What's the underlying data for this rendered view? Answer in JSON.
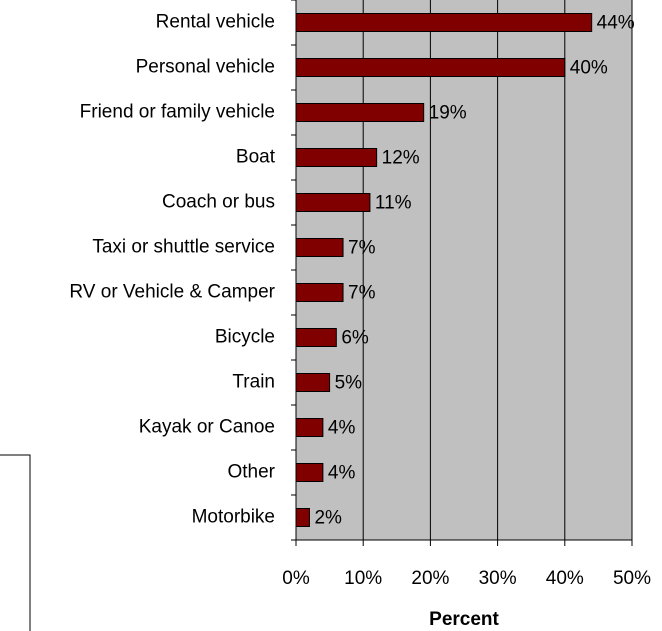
{
  "chart_data": {
    "type": "bar",
    "orientation": "horizontal",
    "x_label": "Percent",
    "categories": [
      "Rental vehicle",
      "Personal vehicle",
      "Friend or family vehicle",
      "Boat",
      "Coach or bus",
      "Taxi or shuttle service",
      "RV or Vehicle & Camper",
      "Bicycle",
      "Train",
      "Kayak or Canoe",
      "Other",
      "Motorbike"
    ],
    "values": [
      44,
      40,
      19,
      12,
      11,
      7,
      7,
      6,
      5,
      4,
      4,
      2
    ],
    "value_labels": [
      "44%",
      "40%",
      "19%",
      "12%",
      "11%",
      "7%",
      "7%",
      "6%",
      "5%",
      "4%",
      "4%",
      "2%"
    ],
    "color": "#800000",
    "xlim": [
      0,
      50
    ],
    "xticks": [
      {
        "value": 0,
        "label": "0%"
      },
      {
        "value": 10,
        "label": "10%"
      },
      {
        "value": 20,
        "label": "20%"
      },
      {
        "value": 30,
        "label": "30%"
      },
      {
        "value": 40,
        "label": "40%"
      },
      {
        "value": 50,
        "label": "50%"
      }
    ],
    "grid": true
  }
}
